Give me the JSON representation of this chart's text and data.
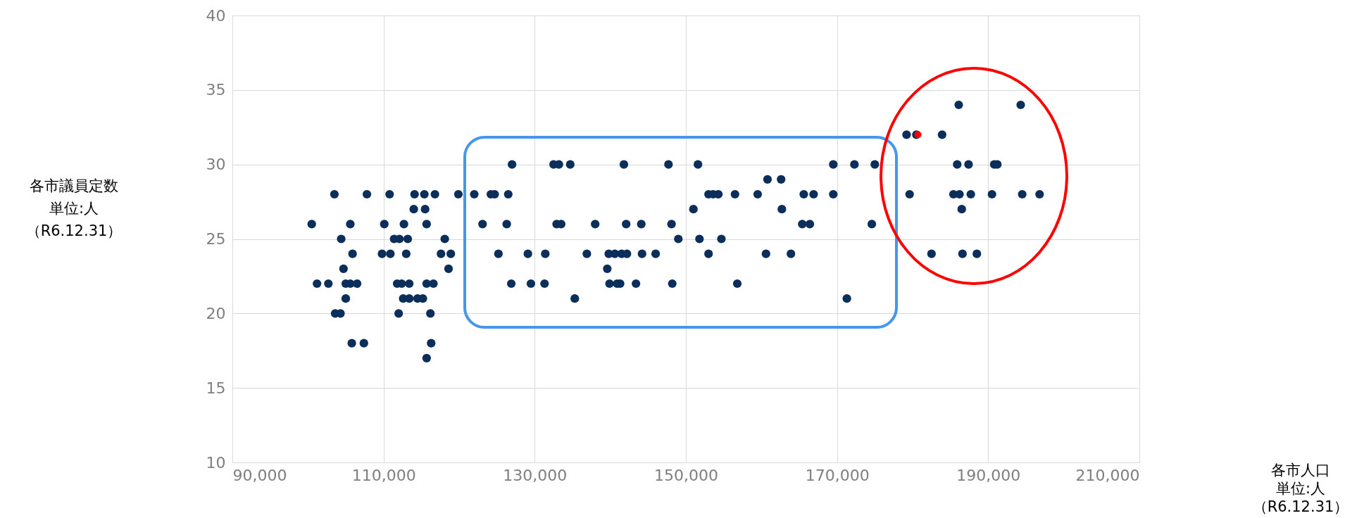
{
  "chart_data": {
    "type": "scatter",
    "annotations": [
      "各市議員定数",
      "単位:人",
      "（R6.12.31）",
      "各市人口",
      "単位:人",
      "（R6.12.31）"
    ],
    "xlim": [
      90000,
      210000
    ],
    "xticks": [
      {
        "value": 90000,
        "label": "90,000"
      },
      {
        "value": 110000,
        "label": "110,000"
      },
      {
        "value": 130000,
        "label": "130,000"
      },
      {
        "value": 150000,
        "label": "150,000"
      },
      {
        "value": 170000,
        "label": "170,000"
      },
      {
        "value": 190000,
        "label": "190,000"
      },
      {
        "value": 210000,
        "label": "210,000"
      }
    ],
    "ylim": [
      10,
      40
    ],
    "yticks": [
      10,
      15,
      20,
      25,
      30,
      35,
      40
    ],
    "grid": true,
    "marker": "circle",
    "legend": false,
    "series": [
      {
        "color": "#0b2f5a",
        "x": [
          103500,
          107800,
          110800,
          114100,
          115400,
          116800,
          119900,
          122000,
          124200,
          124700,
          126500,
          153000,
          153600,
          154300,
          156500,
          159500,
          165600,
          166900,
          169500,
          179600,
          185400,
          186200,
          187700,
          190500,
          194500,
          196800,
          114000,
          115500,
          151000,
          162700,
          186500,
          100500,
          105600,
          110100,
          112700,
          115700,
          123100,
          126300,
          132900,
          133500,
          138000,
          142100,
          144100,
          148100,
          165400,
          166400,
          174600,
          104400,
          111400,
          112100,
          113200,
          118100,
          149000,
          151800,
          154700,
          105900,
          109800,
          110900,
          113000,
          117600,
          118900,
          125200,
          129100,
          131400,
          136900,
          139800,
          140600,
          141500,
          142200,
          144200,
          146000,
          153000,
          160600,
          163900,
          182500,
          186600,
          188500,
          104700,
          118600,
          139600,
          101200,
          102700,
          105000,
          105600,
          106500,
          111800,
          112400,
          113400,
          115700,
          116600,
          126900,
          129500,
          131300,
          139900,
          140900,
          141300,
          143400,
          148200,
          156800,
          105000,
          112600,
          113400,
          114500,
          115200,
          135300,
          171300,
          103600,
          104300,
          112000,
          116200,
          105800,
          107400,
          116300,
          115700,
          160800,
          162600,
          127000,
          132500,
          133200,
          134700,
          141800,
          147700,
          151600,
          169500,
          172300,
          175000,
          185900,
          187400,
          190800,
          191200,
          179200,
          180500,
          183900,
          186100,
          194300
        ],
        "values": [
          28,
          28,
          28,
          28,
          28,
          28,
          28,
          28,
          28,
          28,
          28,
          28,
          28,
          28,
          28,
          28,
          28,
          28,
          28,
          28,
          28,
          28,
          28,
          28,
          28,
          28,
          27,
          27,
          27,
          27,
          27,
          26,
          26,
          26,
          26,
          26,
          26,
          26,
          26,
          26,
          26,
          26,
          26,
          26,
          26,
          26,
          26,
          25,
          25,
          25,
          25,
          25,
          25,
          25,
          25,
          24,
          24,
          24,
          24,
          24,
          24,
          24,
          24,
          24,
          24,
          24,
          24,
          24,
          24,
          24,
          24,
          24,
          24,
          24,
          24,
          24,
          24,
          23,
          23,
          23,
          22,
          22,
          22,
          22,
          22,
          22,
          22,
          22,
          22,
          22,
          22,
          22,
          22,
          22,
          22,
          22,
          22,
          22,
          22,
          21,
          21,
          21,
          21,
          21,
          21,
          21,
          20,
          20,
          20,
          20,
          18,
          18,
          18,
          17,
          29,
          29,
          30,
          30,
          30,
          30,
          30,
          30,
          30,
          30,
          30,
          30,
          30,
          30,
          30,
          30,
          32,
          32,
          32,
          34,
          34
        ]
      },
      {
        "color": "#ff0000",
        "x": [
          180700
        ],
        "values": [
          32
        ]
      }
    ]
  }
}
